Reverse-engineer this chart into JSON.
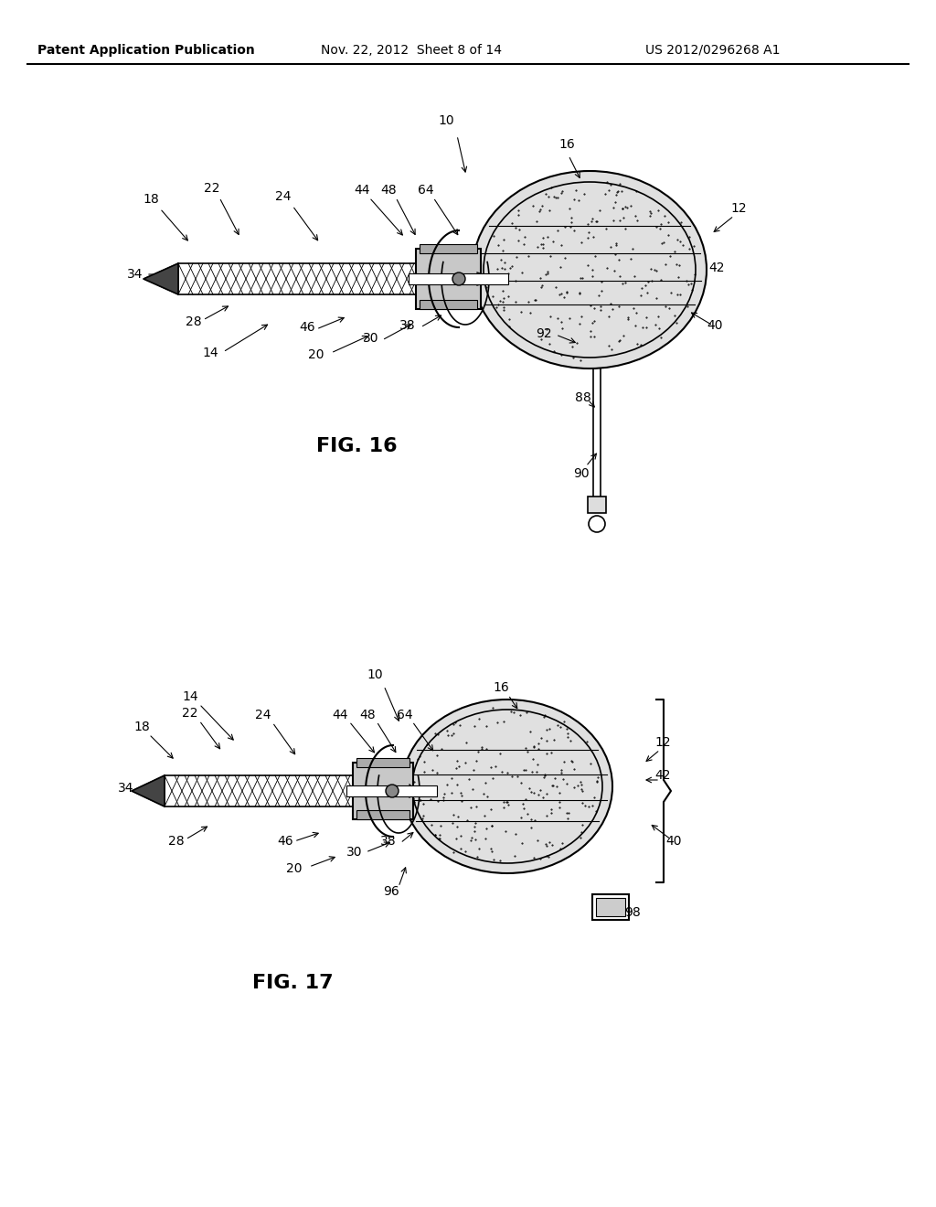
{
  "background_color": "#ffffff",
  "header_left": "Patent Application Publication",
  "header_center": "Nov. 22, 2012  Sheet 8 of 14",
  "header_right": "US 2012/0296268 A1",
  "fig16_label": "FIG. 16",
  "fig17_label": "FIG. 17",
  "header_fontsize": 10,
  "label_fontsize": 16,
  "ref_fontsize": 10
}
